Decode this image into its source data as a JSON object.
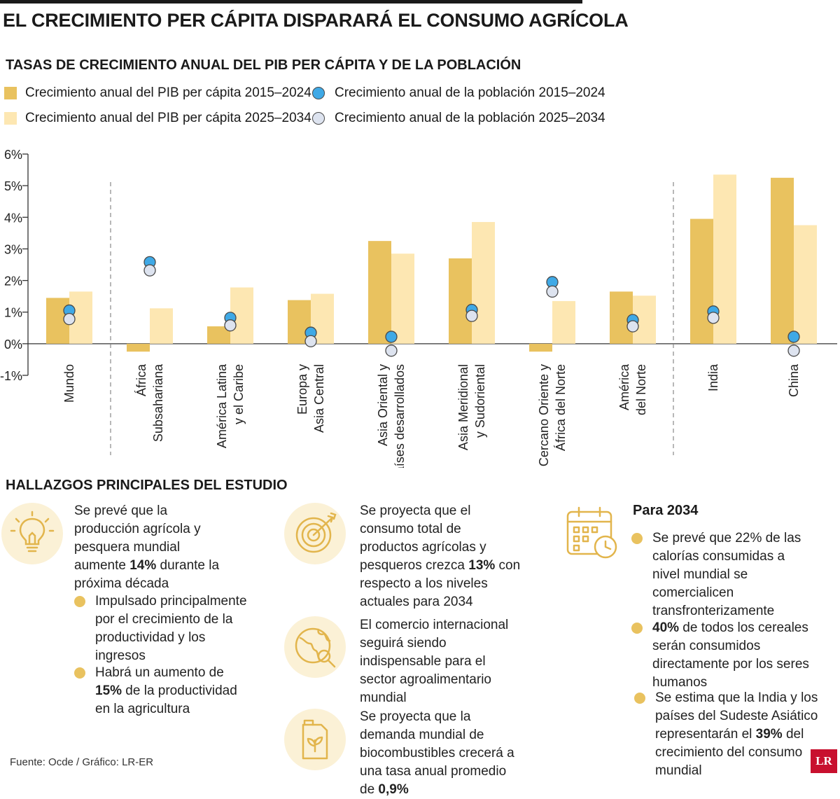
{
  "main_title": "EL CRECIMIENTO PER CÁPITA DISPARARÁ EL CONSUMO AGRÍCOLA",
  "colors": {
    "bar_2015": "#e9c25f",
    "bar_2025": "#fde7b2",
    "dot_2015": "#3fa9e6",
    "dot_2025": "#dde3ef",
    "bullet": "#e9c25f"
  },
  "chart_data": {
    "type": "bar",
    "title": "TASAS DE CRECIMIENTO ANUAL DEL PIB PER CÁPITA Y DE LA POBLACIÓN",
    "ylim": [
      -1,
      6
    ],
    "yticks": [
      "6%",
      "5%",
      "4%",
      "3%",
      "2%",
      "1%",
      "0%",
      "-1%"
    ],
    "categories": [
      "Mundo",
      "África Subsahariana",
      "América Latina y el Caribe",
      "Europa y Asia Central",
      "Asia Oriental y países desarrollados",
      "Asia Meridional y Sudoriental",
      "Cercano Oriente y África del Norte",
      "América del Norte",
      "India",
      "China"
    ],
    "category_lines": [
      [
        "Mundo"
      ],
      [
        "África",
        "Subsahariana"
      ],
      [
        "América Latina",
        "y el Caribe"
      ],
      [
        "Europa y",
        "Asia Central"
      ],
      [
        "Asia Oriental y",
        "países desarrollados"
      ],
      [
        "Asia Meridional",
        "y Sudoriental"
      ],
      [
        "Cercano Oriente y",
        "África del Norte"
      ],
      [
        "América",
        "del Norte"
      ],
      [
        "India"
      ],
      [
        "China"
      ]
    ],
    "series": [
      {
        "name": "Crecimiento anual del PIB per cápita 2015–2024",
        "kind": "bar",
        "values": [
          1.45,
          -0.25,
          0.55,
          1.38,
          3.25,
          2.7,
          -0.25,
          1.65,
          3.95,
          5.25
        ]
      },
      {
        "name": "Crecimiento anual del PIB per cápita 2025–2034",
        "kind": "bar",
        "values": [
          1.65,
          1.12,
          1.78,
          1.58,
          2.85,
          3.85,
          1.35,
          1.52,
          5.35,
          3.75
        ]
      },
      {
        "name": "Crecimiento anual de la población 2015–2024",
        "kind": "dot",
        "values": [
          1.05,
          2.58,
          0.82,
          0.35,
          0.22,
          1.07,
          1.95,
          0.75,
          1.02,
          0.22
        ]
      },
      {
        "name": "Crecimiento anual de la población 2025–2034",
        "kind": "dot",
        "values": [
          0.78,
          2.32,
          0.58,
          0.08,
          -0.22,
          0.88,
          1.65,
          0.55,
          0.82,
          -0.22
        ]
      }
    ]
  },
  "findings": {
    "title": "HALLAZGOS PRINCIPALES DEL ESTUDIO",
    "col1": {
      "p1_pre": "Se prevé que la producción agrícola y pesquera mundial aumente ",
      "p1_bold": "14%",
      "p1_post": " durante la próxima década",
      "b1": "Impulsado principalmente por el crecimiento de la productividad y los ingresos",
      "b2_pre": "Habrá un aumento de ",
      "b2_bold": "15%",
      "b2_post": " de la productividad en la agricultura"
    },
    "col2": {
      "p1_pre": "Se proyecta que el consumo total de productos agrícolas y pesqueros crezca ",
      "p1_bold": "13%",
      "p1_post": " con respecto a los niveles actuales para 2034",
      "p2": "El comercio internacional seguirá siendo indispensable para el sector agroalimentario mundial",
      "p3_pre": "Se proyecta que la demanda mundial de biocombustibles crecerá a una tasa anual promedio de ",
      "p3_bold": "0,9%"
    },
    "col3": {
      "title": "Para 2034",
      "b1": "Se prevé que 22% de las calorías consumidas a nivel mundial se comercialicen transfronterizamente",
      "b2_bold": "40%",
      "b2_post": " de todos los cereales serán consumidos directamente por los seres humanos",
      "b3_pre": "Se estima que la India y los países del Sudeste Asiático representarán el ",
      "b3_bold": "39%",
      "b3_post": " del crecimiento del consumo mundial"
    }
  },
  "source": "Fuente: Ocde / Gráfico: LR-ER",
  "logo_text": "LR"
}
